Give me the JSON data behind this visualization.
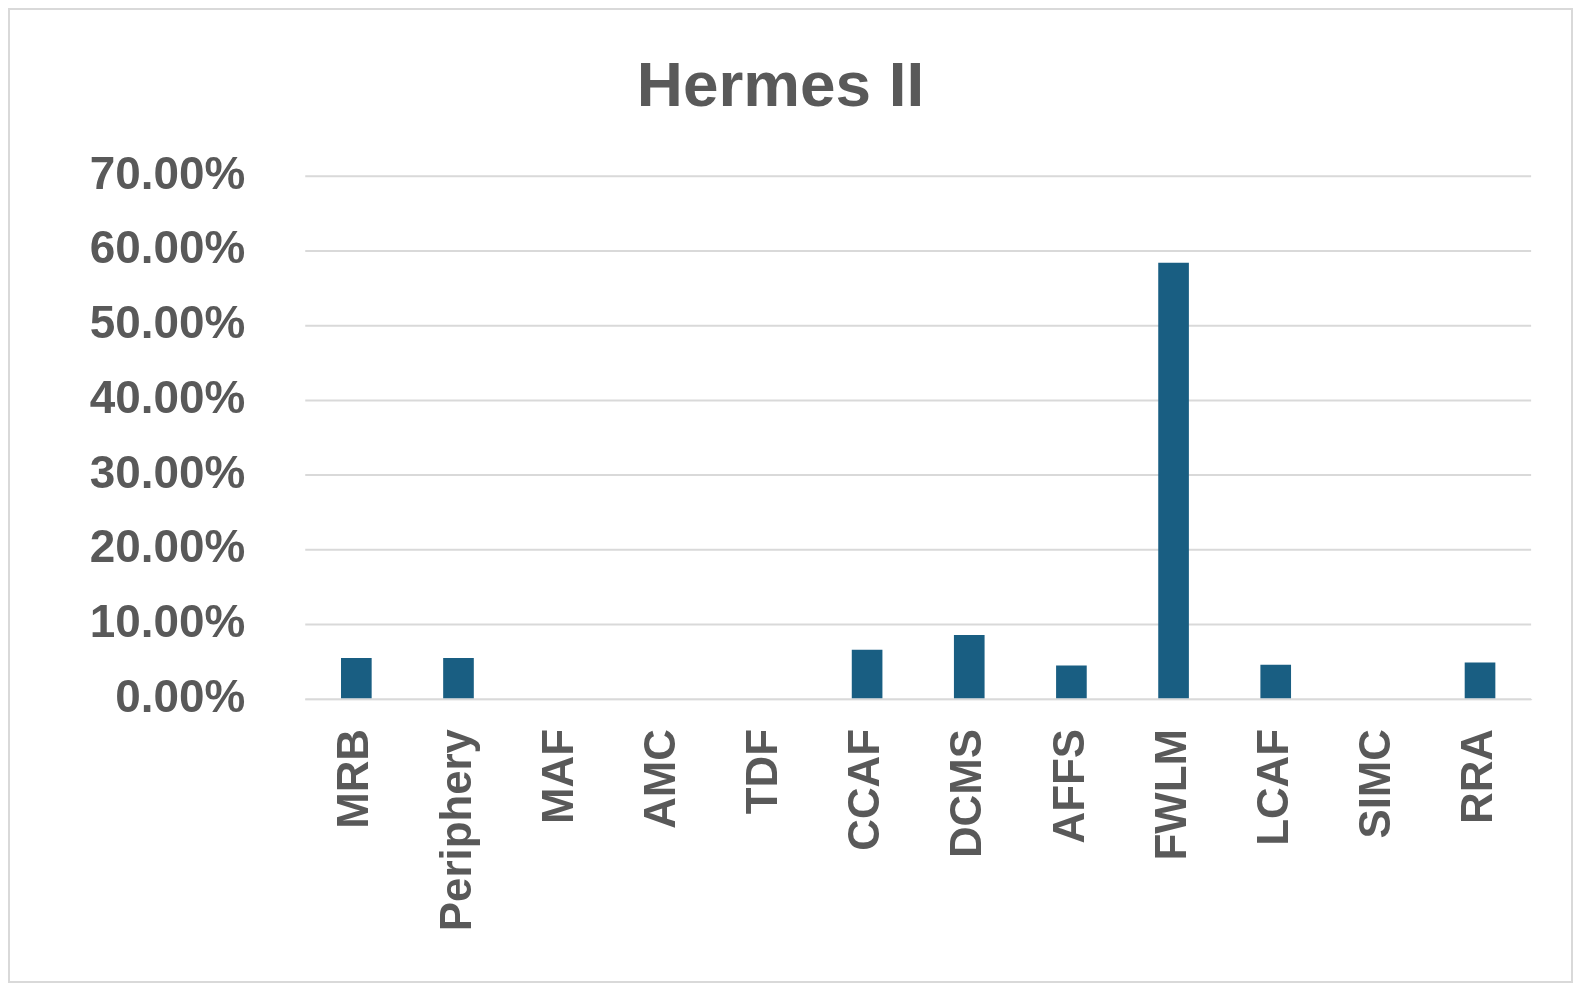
{
  "chart_data": {
    "type": "bar",
    "title": "Hermes II",
    "categories": [
      "MRB",
      "Periphery",
      "MAF",
      "AMC",
      "TDF",
      "CCAF",
      "DCMS",
      "AFFS",
      "FWLM",
      "LCAF",
      "SIMC",
      "RRA"
    ],
    "values": [
      5.5,
      5.5,
      0,
      0,
      0,
      6.6,
      8.6,
      4.5,
      58.4,
      4.6,
      0,
      4.9
    ],
    "color": "#195e82",
    "ylim": [
      0,
      70
    ],
    "yticks": [
      {
        "value": 0,
        "label": "0.00%"
      },
      {
        "value": 10,
        "label": "10.00%"
      },
      {
        "value": 20,
        "label": "20.00%"
      },
      {
        "value": 30,
        "label": "30.00%"
      },
      {
        "value": 40,
        "label": "40.00%"
      },
      {
        "value": 50,
        "label": "50.00%"
      },
      {
        "value": 60,
        "label": "60.00%"
      },
      {
        "value": 70,
        "label": "70.00%"
      }
    ],
    "grid": "y"
  }
}
